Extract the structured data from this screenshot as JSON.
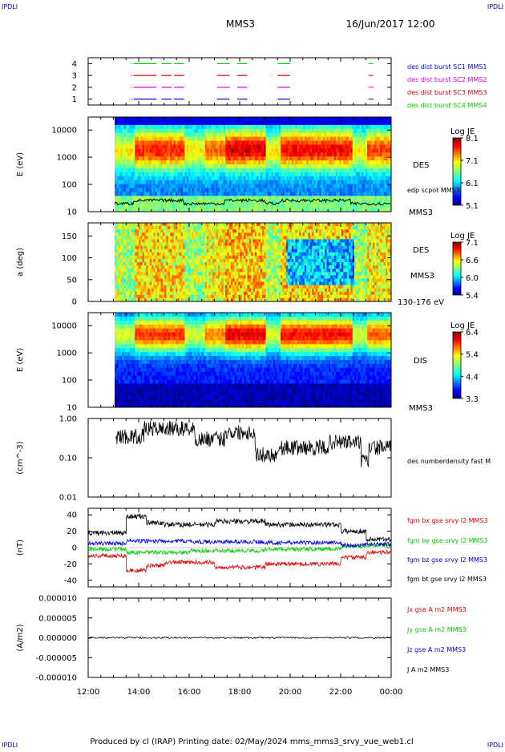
{
  "corner_left_top": "IPDLI",
  "corner_right_top": "IPDLI",
  "corner_left_bottom": "IPDLI",
  "corner_right_bottom": "IPDLI",
  "header": {
    "mission": "MMS3",
    "datetime": "16/Jun/2017 12:00"
  },
  "footer": {
    "text": "Produced by cl (IRAP)   Printing date: 02/May/2024   mms_mms3_srvy_vue_web1.cl"
  },
  "x_ticks": [
    "12:00",
    "14:00",
    "16:00",
    "18:00",
    "20:00",
    "22:00",
    "00:00"
  ],
  "chart_data": [
    {
      "type": "line",
      "title": "",
      "ylabel": "",
      "yticks": [
        "4",
        "3",
        "2",
        "1"
      ],
      "ylim": [
        0.5,
        4.5
      ],
      "series": [
        {
          "name": "des dist burst SC1 MMS1",
          "color": "#0000ff",
          "level": 1,
          "segments": [
            [
              13.8,
              14.7
            ],
            [
              14.9,
              15.3
            ],
            [
              15.4,
              15.8
            ],
            [
              17.1,
              17.6
            ],
            [
              17.9,
              18.3
            ],
            [
              19.5,
              20.0
            ]
          ]
        },
        {
          "name": "des dist burst SC2 MMS2",
          "color": "#dd00dd",
          "level": 2,
          "segments": [
            [
              13.8,
              14.7
            ],
            [
              14.9,
              15.3
            ],
            [
              15.4,
              15.8
            ],
            [
              17.1,
              17.6
            ],
            [
              17.9,
              18.3
            ],
            [
              19.5,
              20.0
            ]
          ]
        },
        {
          "name": "des dist burst SC3 MMS3",
          "color": "#dd0000",
          "level": 3,
          "segments": [
            [
              13.8,
              14.7
            ],
            [
              14.9,
              15.3
            ],
            [
              15.4,
              15.8
            ],
            [
              17.1,
              17.6
            ],
            [
              17.9,
              18.3
            ],
            [
              19.5,
              20.0
            ]
          ]
        },
        {
          "name": "des dist burst SC4 MMS4",
          "color": "#00cc00",
          "level": 4,
          "segments": [
            [
              13.8,
              14.7
            ],
            [
              14.9,
              15.3
            ],
            [
              15.4,
              15.8
            ],
            [
              17.1,
              17.6
            ],
            [
              17.9,
              18.3
            ],
            [
              19.5,
              20.0
            ]
          ]
        }
      ]
    },
    {
      "type": "heatmap",
      "ylabel": "E (eV)",
      "yscale": "log",
      "yticks": [
        "10000",
        "1000",
        "100",
        "10"
      ],
      "right_labels": [
        "DES",
        "edp scpot MMS3",
        "MMS3"
      ],
      "colorbar": {
        "title": "Log JE",
        "ticks": [
          "8.1",
          "7.1",
          "6.1",
          "5.1"
        ]
      },
      "overlay": "edp scpot MMS3"
    },
    {
      "type": "heatmap",
      "ylabel": "a (deg)",
      "yticks": [
        "150",
        "100",
        "50",
        "0"
      ],
      "right_labels": [
        "DES",
        "MMS3",
        "130-176 eV"
      ],
      "colorbar": {
        "title": "Log JE",
        "ticks": [
          "7.1",
          "6.6",
          "6.0",
          "5.4"
        ]
      }
    },
    {
      "type": "heatmap",
      "ylabel": "E (eV)",
      "yscale": "log",
      "yticks": [
        "10000",
        "1000",
        "100",
        "10"
      ],
      "right_labels": [
        "DIS",
        "MMS3"
      ],
      "colorbar": {
        "title": "Log JE",
        "ticks": [
          "6.4",
          "5.4",
          "4.4",
          "3.3"
        ]
      }
    },
    {
      "type": "line",
      "ylabel": "(cm^-3)",
      "yscale": "log",
      "yticks": [
        "1.00",
        "0.10",
        "0.01"
      ],
      "series": [
        {
          "name": "des numberdensity fast M",
          "color": "#000000"
        }
      ]
    },
    {
      "type": "line",
      "ylabel": "(nT)",
      "yticks": [
        "40",
        "20",
        "0",
        "-20",
        "-40"
      ],
      "ylim": [
        -48,
        48
      ],
      "series": [
        {
          "name": "fgm bx gse srvy l2 MMS3",
          "color": "#dd0000"
        },
        {
          "name": "fgm by gse srvy l2 MMS3",
          "color": "#00cc00"
        },
        {
          "name": "fgm bz gse srvy l2 MMS3",
          "color": "#0000dd"
        },
        {
          "name": "fgm bt gse srvy l2 MMS3",
          "color": "#000000"
        }
      ]
    },
    {
      "type": "line",
      "ylabel": "(A/m2)",
      "yticks": [
        "0.000010",
        "0.000005",
        "0.000000",
        "-0.000005",
        "-0.000010"
      ],
      "ylim": [
        -1e-05,
        1e-05
      ],
      "series": [
        {
          "name": "Jx gse A m2 MMS3",
          "color": "#dd0000"
        },
        {
          "name": "Jy gse A m2 MMS3",
          "color": "#00cc00"
        },
        {
          "name": "Jz gse A m2 MMS3",
          "color": "#0000dd"
        },
        {
          "name": "J A m2 MMS3",
          "color": "#000000"
        }
      ]
    }
  ]
}
